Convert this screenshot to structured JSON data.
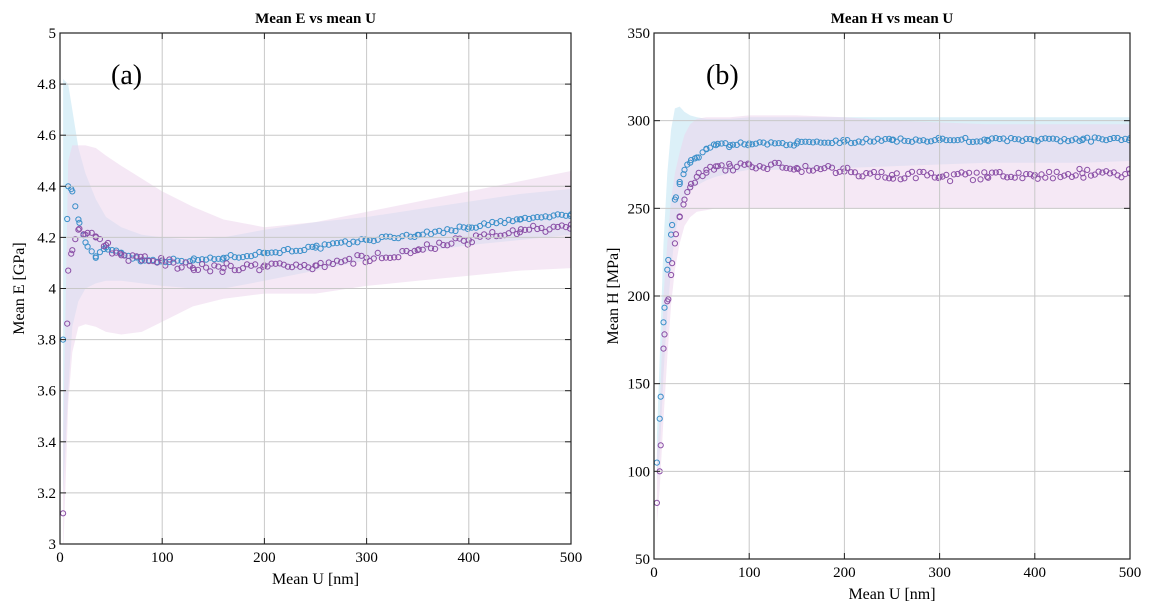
{
  "chart_data": [
    {
      "type": "scatter",
      "title": "Mean E vs mean U",
      "panel_label": "(a)",
      "xlabel": "Mean U [nm]",
      "ylabel": "Mean E [GPa]",
      "xlim": [
        0,
        500
      ],
      "ylim": [
        3,
        5
      ],
      "xticks": [
        0,
        100,
        200,
        300,
        400,
        500
      ],
      "yticks": [
        3,
        3.2,
        3.4,
        3.6,
        3.8,
        4,
        4.2,
        4.4,
        4.6,
        4.8,
        5
      ],
      "grid": true,
      "series": [
        {
          "color": "#3a8fc9",
          "band_color": "#bfe3f2",
          "x": [
            3,
            8,
            12,
            18,
            25,
            35,
            45,
            60,
            80,
            100,
            130,
            160,
            200,
            250,
            300,
            350,
            400,
            450,
            500
          ],
          "y": [
            3.8,
            4.4,
            4.38,
            4.27,
            4.18,
            4.12,
            4.16,
            4.14,
            4.11,
            4.11,
            4.11,
            4.12,
            4.14,
            4.16,
            4.19,
            4.21,
            4.24,
            4.27,
            4.29
          ],
          "band_low": [
            3.2,
            3.6,
            3.85,
            3.95,
            4.0,
            4.02,
            4.03,
            4.03,
            4.02,
            4.01,
            4.0,
            4.0,
            4.03,
            4.07,
            4.11,
            4.14,
            4.17,
            4.19,
            4.21
          ],
          "band_high": [
            4.82,
            4.8,
            4.7,
            4.55,
            4.45,
            4.35,
            4.28,
            4.24,
            4.21,
            4.2,
            4.19,
            4.2,
            4.23,
            4.26,
            4.28,
            4.31,
            4.34,
            4.37,
            4.39
          ]
        },
        {
          "color": "#8a4fa6",
          "band_color": "#ecd6ec",
          "x": [
            3,
            8,
            12,
            18,
            25,
            35,
            45,
            60,
            80,
            100,
            130,
            160,
            200,
            250,
            300,
            350,
            400,
            450,
            500
          ],
          "y": [
            3.12,
            4.07,
            4.15,
            4.23,
            4.21,
            4.2,
            4.17,
            4.13,
            4.11,
            4.11,
            4.08,
            4.08,
            4.09,
            4.09,
            4.12,
            4.15,
            4.19,
            4.22,
            4.25
          ],
          "band_low": [
            2.95,
            3.55,
            3.75,
            3.85,
            3.86,
            3.85,
            3.83,
            3.82,
            3.83,
            3.87,
            3.93,
            3.96,
            3.98,
            3.98,
            4.01,
            4.03,
            4.05,
            4.07,
            4.08
          ],
          "band_high": [
            3.4,
            4.5,
            4.56,
            4.56,
            4.56,
            4.55,
            4.52,
            4.48,
            4.43,
            4.38,
            4.32,
            4.27,
            4.24,
            4.26,
            4.3,
            4.34,
            4.38,
            4.42,
            4.46
          ]
        }
      ]
    },
    {
      "type": "scatter",
      "title": "Mean H vs mean U",
      "panel_label": "(b)",
      "xlabel": "Mean U [nm]",
      "ylabel": "Mean H [MPa]",
      "xlim": [
        0,
        500
      ],
      "ylim": [
        50,
        350
      ],
      "xticks": [
        0,
        100,
        200,
        300,
        400,
        500
      ],
      "yticks": [
        50,
        100,
        150,
        200,
        250,
        300,
        350
      ],
      "grid": true,
      "series": [
        {
          "color": "#3a8fc9",
          "band_color": "#bfe3f2",
          "x": [
            3,
            6,
            10,
            14,
            18,
            22,
            27,
            32,
            38,
            45,
            55,
            65,
            80,
            100,
            150,
            200,
            250,
            300,
            350,
            400,
            450,
            500
          ],
          "y": [
            105,
            130,
            185,
            215,
            235,
            255,
            265,
            272,
            276,
            279,
            284,
            286,
            286,
            287,
            287,
            288,
            289,
            289,
            289,
            289,
            289,
            290
          ],
          "band_low": [
            95,
            110,
            155,
            190,
            215,
            235,
            248,
            255,
            260,
            263,
            266,
            268,
            270,
            272,
            272,
            273,
            274,
            275,
            276,
            276,
            276,
            277
          ],
          "band_high": [
            120,
            165,
            230,
            270,
            295,
            307,
            308,
            305,
            303,
            302,
            301,
            301,
            301,
            302,
            302,
            302,
            302,
            302,
            302,
            302,
            302,
            302
          ]
        },
        {
          "color": "#8a4fa6",
          "band_color": "#ecd6ec",
          "x": [
            3,
            6,
            10,
            14,
            18,
            22,
            27,
            32,
            38,
            45,
            55,
            65,
            80,
            100,
            150,
            200,
            250,
            300,
            350,
            400,
            450,
            500
          ],
          "y": [
            82,
            100,
            170,
            197,
            212,
            230,
            245,
            255,
            262,
            268,
            272,
            274,
            274,
            275,
            273,
            271,
            269,
            268,
            268,
            269,
            270,
            270
          ],
          "band_low": [
            70,
            90,
            130,
            165,
            195,
            215,
            230,
            240,
            245,
            248,
            249,
            250,
            250,
            250,
            250,
            250,
            250,
            250,
            250,
            250,
            250,
            250
          ],
          "band_high": [
            110,
            130,
            200,
            230,
            255,
            270,
            282,
            292,
            298,
            301,
            302,
            302,
            302,
            303,
            303,
            302,
            300,
            299,
            298,
            298,
            298,
            298
          ]
        }
      ]
    }
  ]
}
